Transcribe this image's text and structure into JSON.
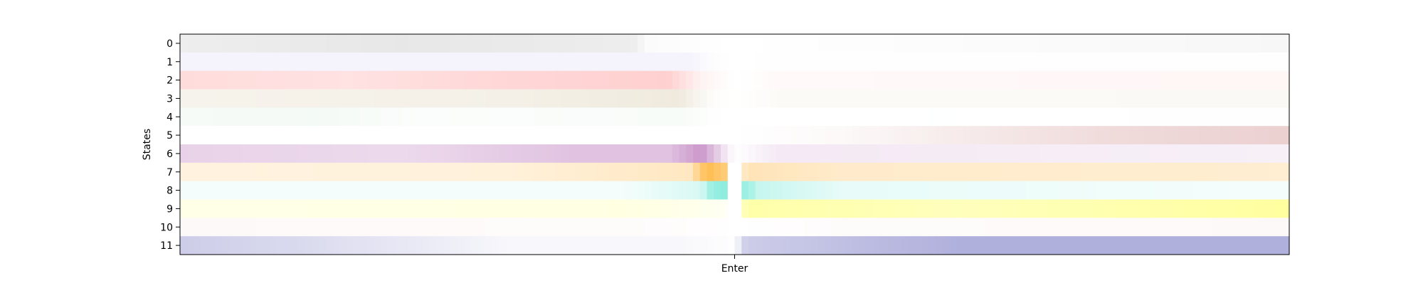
{
  "chart_data": {
    "type": "heatmap",
    "title": "",
    "xlabel": "",
    "ylabel": "States",
    "x_ticks": [
      {
        "label": "Enter",
        "position": 50
      }
    ],
    "x_domain": [
      0,
      100
    ],
    "states": [
      {
        "label": "0",
        "color": "#b0b0b0",
        "stops": [
          [
            0,
            0.22
          ],
          [
            20,
            0.3
          ],
          [
            35,
            0.25
          ],
          [
            41,
            0.22
          ],
          [
            42,
            0.05
          ],
          [
            50,
            0.0
          ],
          [
            58,
            0.02
          ],
          [
            100,
            0.1
          ]
        ]
      },
      {
        "label": "1",
        "color": "#d8d0f0",
        "stops": [
          [
            0,
            0.25
          ],
          [
            46,
            0.25
          ],
          [
            48,
            0.05
          ],
          [
            50,
            0.0
          ],
          [
            53,
            0.02
          ],
          [
            100,
            0.03
          ]
        ]
      },
      {
        "label": "2",
        "color": "#ff8a8a",
        "stops": [
          [
            0,
            0.3
          ],
          [
            15,
            0.25
          ],
          [
            30,
            0.35
          ],
          [
            44,
            0.4
          ],
          [
            47,
            0.1
          ],
          [
            50,
            0.0
          ],
          [
            54,
            0.05
          ],
          [
            100,
            0.08
          ]
        ]
      },
      {
        "label": "3",
        "color": "#d4c4a0",
        "stops": [
          [
            0,
            0.2
          ],
          [
            30,
            0.25
          ],
          [
            45,
            0.35
          ],
          [
            48,
            0.05
          ],
          [
            50,
            0.0
          ],
          [
            54,
            0.08
          ],
          [
            100,
            0.1
          ]
        ]
      },
      {
        "label": "4",
        "color": "#b8dcc0",
        "stops": [
          [
            0,
            0.12
          ],
          [
            12,
            0.15
          ],
          [
            22,
            0.05
          ],
          [
            45,
            0.1
          ],
          [
            48,
            0.02
          ],
          [
            50,
            0.0
          ],
          [
            100,
            0.02
          ]
        ]
      },
      {
        "label": "5",
        "color": "#c87a7a",
        "stops": [
          [
            0,
            0.0
          ],
          [
            50,
            0.0
          ],
          [
            60,
            0.05
          ],
          [
            70,
            0.15
          ],
          [
            85,
            0.28
          ],
          [
            100,
            0.35
          ]
        ]
      },
      {
        "label": "6",
        "color": "#b46ab4",
        "stops": [
          [
            0,
            0.3
          ],
          [
            20,
            0.25
          ],
          [
            35,
            0.4
          ],
          [
            44,
            0.4
          ],
          [
            47,
            0.7
          ],
          [
            49,
            0.2
          ],
          [
            50,
            0.0
          ],
          [
            54,
            0.15
          ],
          [
            100,
            0.1
          ]
        ]
      },
      {
        "label": "7",
        "color": "#ffb030",
        "stops": [
          [
            0,
            0.15
          ],
          [
            30,
            0.18
          ],
          [
            46,
            0.3
          ],
          [
            47.5,
            0.85
          ],
          [
            49.5,
            0.6
          ],
          [
            49.6,
            0.0
          ],
          [
            50.6,
            0.0
          ],
          [
            51,
            0.35
          ],
          [
            60,
            0.25
          ],
          [
            100,
            0.22
          ]
        ]
      },
      {
        "label": "8",
        "color": "#40e0c8",
        "stops": [
          [
            0,
            0.05
          ],
          [
            40,
            0.06
          ],
          [
            47,
            0.2
          ],
          [
            48,
            0.55
          ],
          [
            49.5,
            0.6
          ],
          [
            49.6,
            0.0
          ],
          [
            50.6,
            0.0
          ],
          [
            51,
            0.6
          ],
          [
            52,
            0.3
          ],
          [
            60,
            0.12
          ],
          [
            100,
            0.05
          ]
        ]
      },
      {
        "label": "9",
        "color": "#ffff40",
        "stops": [
          [
            0,
            0.12
          ],
          [
            40,
            0.15
          ],
          [
            47,
            0.1
          ],
          [
            49.5,
            0.05
          ],
          [
            49.6,
            0.0
          ],
          [
            50.6,
            0.0
          ],
          [
            51,
            0.45
          ],
          [
            70,
            0.35
          ],
          [
            100,
            0.5
          ]
        ]
      },
      {
        "label": "10",
        "color": "#f8d8d8",
        "stops": [
          [
            0,
            0.15
          ],
          [
            40,
            0.1
          ],
          [
            48,
            0.05
          ],
          [
            50,
            0.0
          ],
          [
            60,
            0.1
          ],
          [
            100,
            0.15
          ]
        ]
      },
      {
        "label": "11",
        "color": "#7070c0",
        "stops": [
          [
            0,
            0.35
          ],
          [
            12,
            0.25
          ],
          [
            30,
            0.05
          ],
          [
            45,
            0.05
          ],
          [
            49,
            0.02
          ],
          [
            50,
            0.0
          ],
          [
            51,
            0.35
          ],
          [
            70,
            0.55
          ],
          [
            100,
            0.55
          ]
        ]
      }
    ]
  }
}
